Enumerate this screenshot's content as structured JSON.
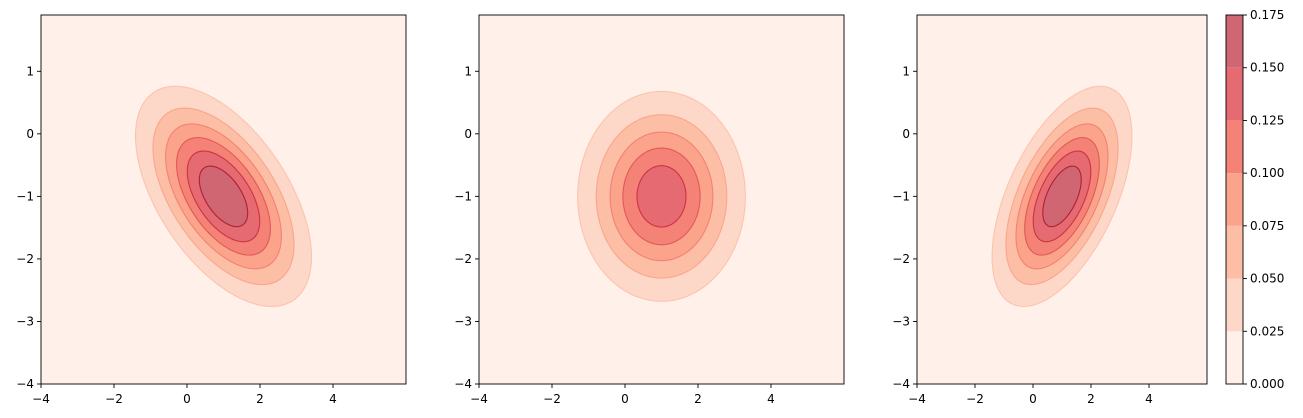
{
  "chart_data": [
    {
      "type": "contour",
      "title": "",
      "xlabel": "",
      "ylabel": "",
      "xlim": [
        -4,
        6
      ],
      "ylim": [
        -4,
        1.9
      ],
      "xticks": [
        -4,
        -2,
        0,
        2,
        4
      ],
      "xtick_labels": [
        "−4",
        "−2",
        "0",
        "2",
        "4"
      ],
      "yticks": [
        -4,
        -3,
        -2,
        -1,
        0,
        1
      ],
      "ytick_labels": [
        "−4",
        "−3",
        "−2",
        "−1",
        "0",
        "1"
      ],
      "distribution": {
        "mean": [
          1,
          -1
        ],
        "cov": [
          [
            1.5,
            -0.6
          ],
          [
            -0.6,
            0.8
          ]
        ]
      },
      "grid": false
    },
    {
      "type": "contour",
      "title": "",
      "xlabel": "",
      "ylabel": "",
      "xlim": [
        -4,
        6
      ],
      "ylim": [
        -4,
        1.9
      ],
      "xticks": [
        -4,
        -2,
        0,
        2,
        4
      ],
      "xtick_labels": [
        "−4",
        "−2",
        "0",
        "2",
        "4"
      ],
      "yticks": [
        -4,
        -3,
        -2,
        -1,
        0,
        1
      ],
      "ytick_labels": [
        "−4",
        "−3",
        "−2",
        "−1",
        "0",
        "1"
      ],
      "distribution": {
        "mean": [
          1,
          -1
        ],
        "cov": [
          [
            1.5,
            0
          ],
          [
            0,
            0.8
          ]
        ]
      },
      "grid": false
    },
    {
      "type": "contour",
      "title": "",
      "xlabel": "",
      "ylabel": "",
      "xlim": [
        -4,
        6
      ],
      "ylim": [
        -4,
        1.9
      ],
      "xticks": [
        -4,
        -2,
        0,
        2,
        4
      ],
      "xtick_labels": [
        "−4",
        "−2",
        "0",
        "2",
        "4"
      ],
      "yticks": [
        -4,
        -3,
        -2,
        -1,
        0,
        1
      ],
      "ytick_labels": [
        "−4",
        "−3",
        "−2",
        "−1",
        "0",
        "1"
      ],
      "distribution": {
        "mean": [
          1,
          -1
        ],
        "cov": [
          [
            1.5,
            0.6
          ],
          [
            0.6,
            0.8
          ]
        ]
      },
      "grid": false
    }
  ],
  "colorbar": {
    "levels": [
      0.0,
      0.025,
      0.05,
      0.075,
      0.1,
      0.125,
      0.15,
      0.175
    ],
    "tick_labels": [
      "0.000",
      "0.025",
      "0.050",
      "0.075",
      "0.100",
      "0.125",
      "0.150",
      "0.175"
    ],
    "fill_colors": [
      "#fff0ea",
      "#fdd8c8",
      "#fcbfa6",
      "#fba38b",
      "#f58277",
      "#e66a72",
      "#d06671"
    ],
    "line_colors": [
      "#fdd0bb",
      "#fcb89e",
      "#f9997e",
      "#f07367",
      "#d9474a",
      "#c01e30",
      "#9e0a22"
    ],
    "colormap": "Reds",
    "alpha": 0.6
  }
}
